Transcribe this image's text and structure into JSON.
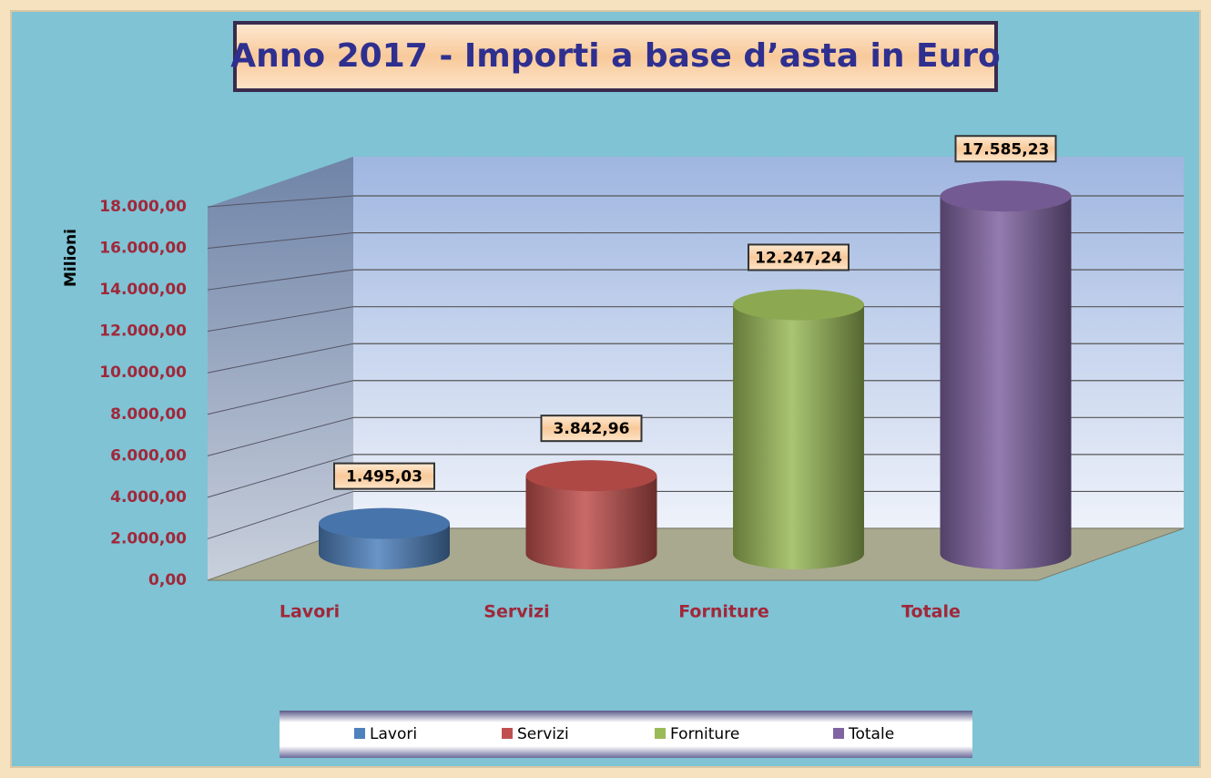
{
  "chart_data": {
    "type": "bar3d",
    "title": "Anno 2017 - Importi a base d’asta in Euro",
    "y_label": "Milioni",
    "categories": [
      "Lavori",
      "Servizi",
      "Forniture",
      "Totale"
    ],
    "values": [
      1495.03,
      3842.96,
      12247.24,
      17585.23
    ],
    "value_labels": [
      "1.495,03",
      "3.842,96",
      "12.247,24",
      "17.585,23"
    ],
    "colors": [
      "#4f81bd",
      "#c0504d",
      "#9bbb59",
      "#8064a2"
    ],
    "ylim": [
      0,
      18000
    ],
    "yticks": [
      {
        "value": 0,
        "label": "0,00"
      },
      {
        "value": 2000,
        "label": "2.000,00"
      },
      {
        "value": 4000,
        "label": "4.000,00"
      },
      {
        "value": 6000,
        "label": "6.000,00"
      },
      {
        "value": 8000,
        "label": "8.000,00"
      },
      {
        "value": 10000,
        "label": "10.000,00"
      },
      {
        "value": 12000,
        "label": "12.000,00"
      },
      {
        "value": 14000,
        "label": "14.000,00"
      },
      {
        "value": 16000,
        "label": "16.000,00"
      },
      {
        "value": 18000,
        "label": "18.000,00"
      }
    ],
    "grid": true,
    "legend": "bottom"
  }
}
